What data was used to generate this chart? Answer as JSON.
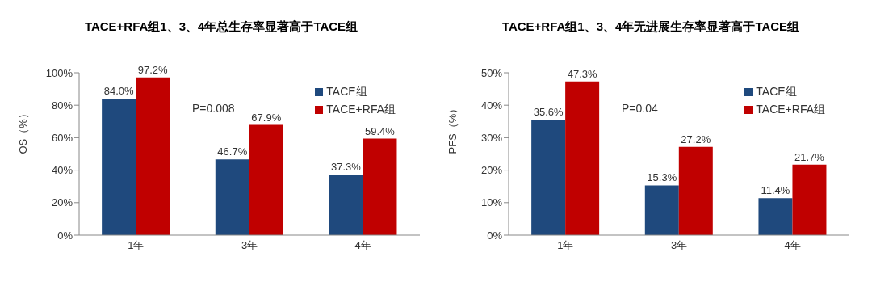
{
  "chart_data": [
    {
      "type": "bar",
      "title": "TACE+RFA组1、3、4年总生存率显著高于TACE组",
      "ylabel": "OS（%）",
      "categories": [
        "1年",
        "3年",
        "4年"
      ],
      "series": [
        {
          "name": "TACE组",
          "color": "#1f497d",
          "values": [
            84.0,
            46.7,
            37.3
          ],
          "value_labels": [
            "84.0%",
            "46.7%",
            "37.3%"
          ]
        },
        {
          "name": "TACE+RFA组",
          "color": "#c00000",
          "values": [
            97.2,
            67.9,
            59.4
          ],
          "value_labels": [
            "97.2%",
            "67.9%",
            "59.4%"
          ]
        }
      ],
      "ylim": [
        0,
        100
      ],
      "yticks": [
        {
          "value": 0,
          "label": "0%"
        },
        {
          "value": 20,
          "label": "20%"
        },
        {
          "value": 40,
          "label": "40%"
        },
        {
          "value": 60,
          "label": "60%"
        },
        {
          "value": 80,
          "label": "80%"
        },
        {
          "value": 100,
          "label": "100%"
        }
      ],
      "annotations": [
        "P=0.008"
      ],
      "legend": "top right",
      "grid": false
    },
    {
      "type": "bar",
      "title": "TACE+RFA组1、3、4年无进展生存率显著高于TACE组",
      "ylabel": "PFS（%）",
      "categories": [
        "1年",
        "3年",
        "4年"
      ],
      "series": [
        {
          "name": "TACE组",
          "color": "#1f497d",
          "values": [
            35.6,
            15.3,
            11.4
          ],
          "value_labels": [
            "35.6%",
            "15.3%",
            "11.4%"
          ]
        },
        {
          "name": "TACE+RFA组",
          "color": "#c00000",
          "values": [
            47.3,
            27.2,
            21.7
          ],
          "value_labels": [
            "47.3%",
            "27.2%",
            "21.7%"
          ]
        }
      ],
      "ylim": [
        0,
        50
      ],
      "yticks": [
        {
          "value": 0,
          "label": "0%"
        },
        {
          "value": 10,
          "label": "10%"
        },
        {
          "value": 20,
          "label": "20%"
        },
        {
          "value": 30,
          "label": "30%"
        },
        {
          "value": 40,
          "label": "40%"
        },
        {
          "value": 50,
          "label": "50%"
        }
      ],
      "annotations": [
        "P=0.04"
      ],
      "legend": "top right",
      "grid": false
    }
  ]
}
